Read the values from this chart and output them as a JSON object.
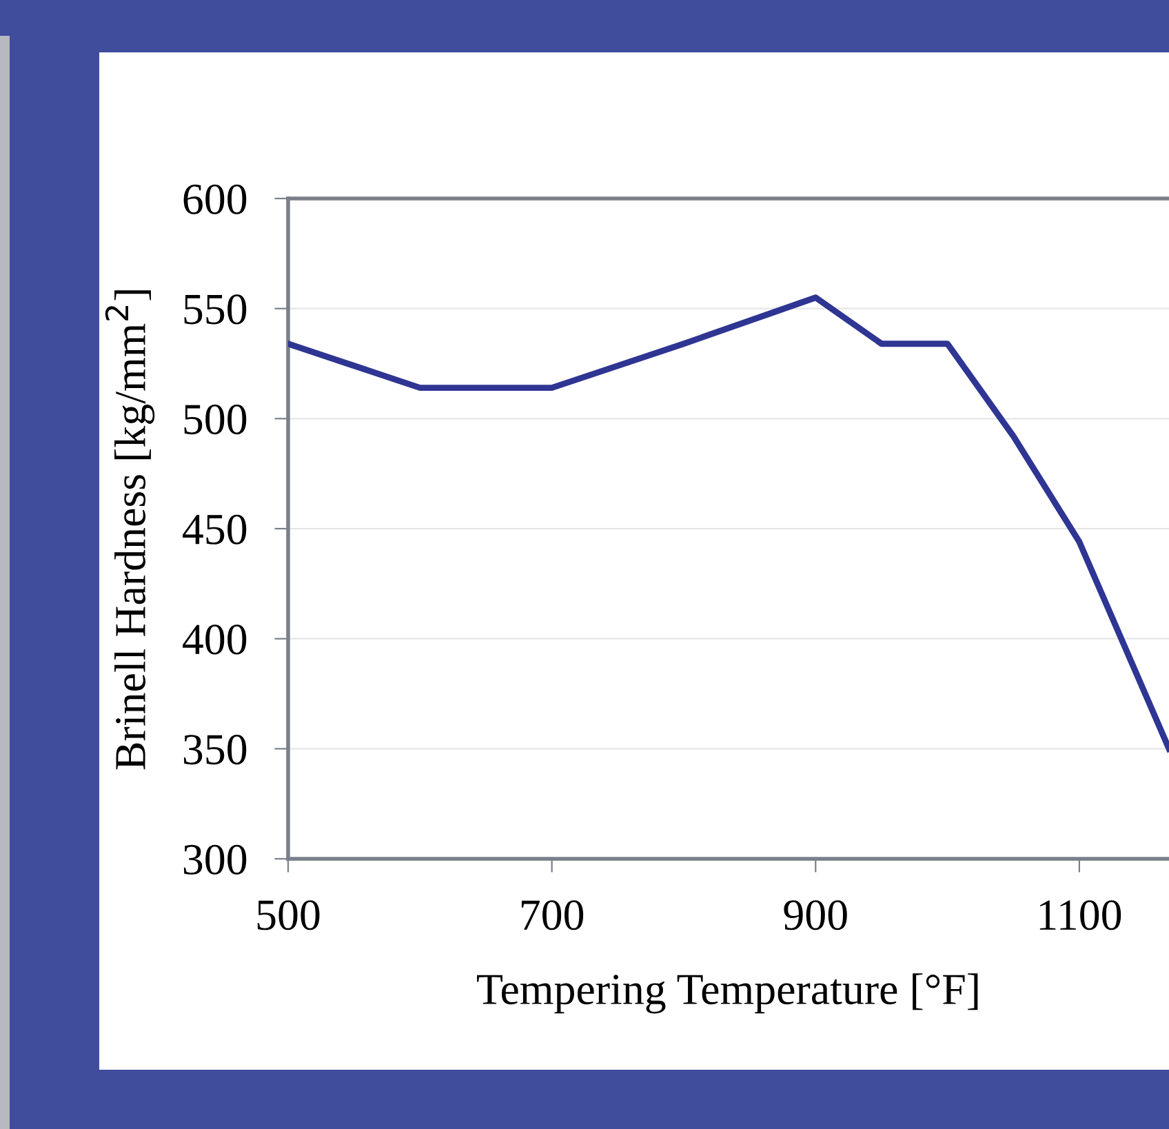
{
  "chart_data": {
    "type": "line",
    "xlabel": "Tempering Temperature [°F]",
    "ylabel": "Brinell Hardness [kg/mm$^{2}$]",
    "x": [
      500,
      600,
      700,
      800,
      900,
      950,
      1000,
      1050,
      1100,
      1168
    ],
    "series": [
      {
        "color": "#2e3592",
        "values": [
          534,
          514,
          514,
          534,
          555,
          534,
          534,
          492,
          444,
          350
        ]
      }
    ],
    "xlim": [
      500,
      1168
    ],
    "xticks": [
      500,
      700,
      900,
      1100
    ],
    "ylim": [
      300,
      600
    ],
    "yticks": [
      300,
      350,
      400,
      450,
      500,
      550,
      600
    ],
    "grid": "y",
    "marker": "none",
    "line_style": "solid"
  }
}
